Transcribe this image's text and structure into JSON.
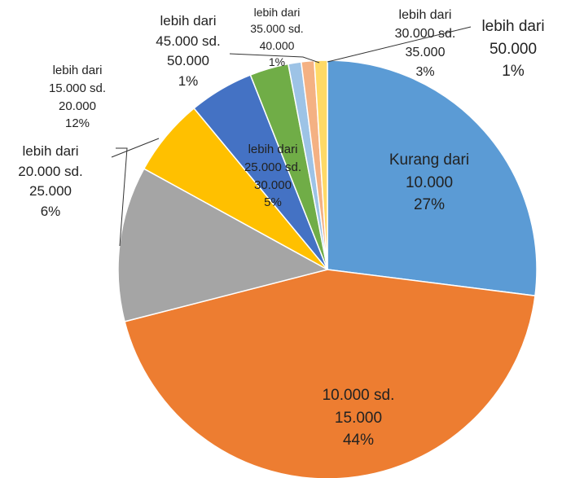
{
  "chart_data": {
    "type": "pie",
    "categories": [
      "Kurang dari 10.000",
      "10.000 sd. 15.000",
      "lebih dari 15.000 sd. 20.000",
      "lebih dari 20.000 sd. 25.000",
      "lebih dari 25.000 sd. 30.000",
      "lebih dari 30.000 sd. 35.000",
      "lebih dari 35.000 sd. 40.000",
      "lebih dari 45.000 sd. 50.000",
      "lebih dari 50.000"
    ],
    "values": [
      27,
      44,
      12,
      6,
      5,
      3,
      1,
      1,
      1
    ],
    "value_labels": [
      "27%",
      "44%",
      "12%",
      "6%",
      "5%",
      "3%",
      "1%",
      "1%",
      "1%"
    ],
    "colors": [
      "#5b9bd5",
      "#ed7d31",
      "#a5a5a5",
      "#ffc000",
      "#4472c4",
      "#70ad47",
      "#9dc3e6",
      "#f4b183",
      "#ffd966"
    ]
  }
}
